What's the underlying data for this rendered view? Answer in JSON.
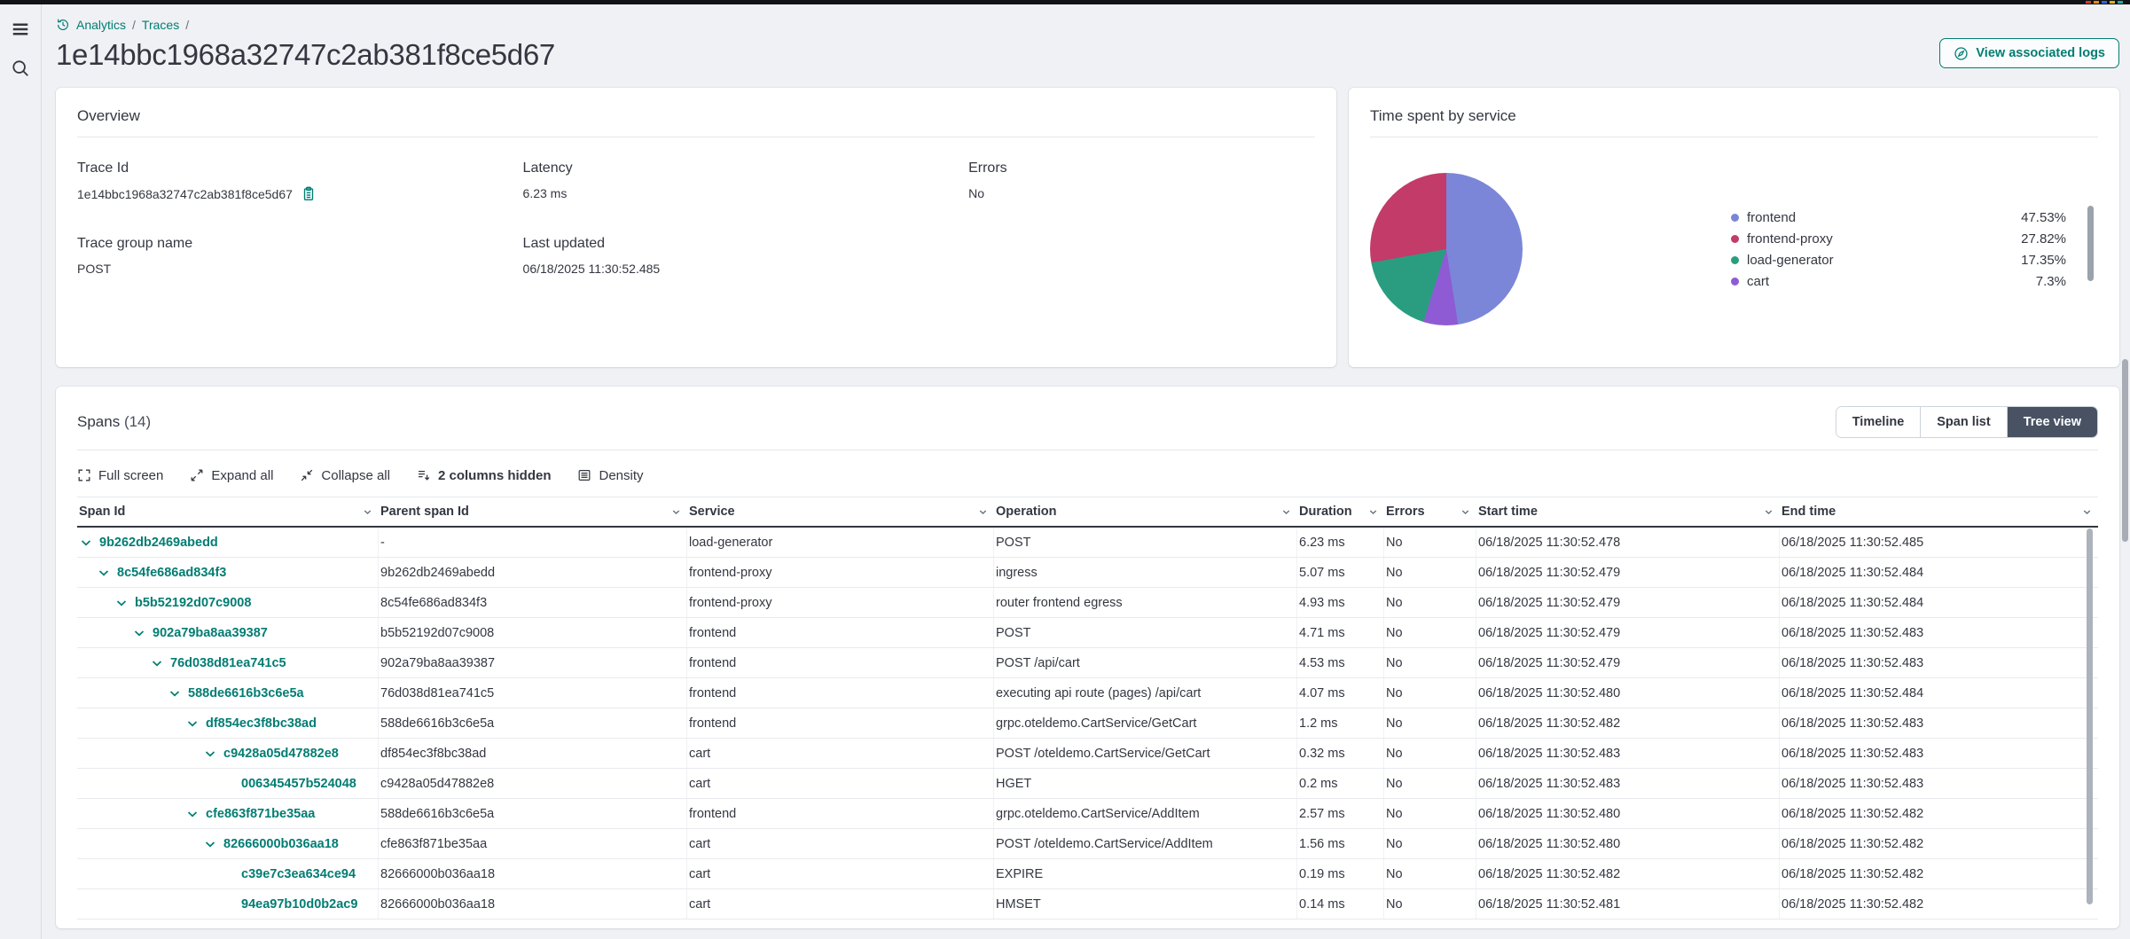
{
  "breadcrumb": {
    "items": [
      "Analytics",
      "Traces"
    ],
    "separator": "/"
  },
  "page_title": "1e14bbc1968a32747c2ab381f8ce5d67",
  "actions": {
    "view_logs": "View associated logs"
  },
  "overview": {
    "title": "Overview",
    "fields": [
      {
        "label": "Trace Id",
        "value": "1e14bbc1968a32747c2ab381f8ce5d67",
        "copyable": true
      },
      {
        "label": "Latency",
        "value": "6.23 ms",
        "copyable": false
      },
      {
        "label": "Errors",
        "value": "No",
        "copyable": false
      },
      {
        "label": "Trace group name",
        "value": "POST",
        "copyable": false
      },
      {
        "label": "Last updated",
        "value": "06/18/2025 11:30:52.485",
        "copyable": false
      }
    ]
  },
  "chart_data": {
    "type": "pie",
    "title": "Time spent by service",
    "categories": [
      "frontend",
      "frontend-proxy",
      "load-generator",
      "cart"
    ],
    "values": [
      47.53,
      27.82,
      17.35,
      7.3
    ],
    "value_labels": [
      "47.53%",
      "27.82%",
      "17.35%",
      "7.3%"
    ],
    "colors": [
      "#7B86D8",
      "#C23B69",
      "#2A9D80",
      "#8E5BD4"
    ],
    "legend_position": "right",
    "clockwise_order": [
      "frontend",
      "cart",
      "load-generator",
      "frontend-proxy"
    ]
  },
  "spans": {
    "title": "Spans",
    "count_label": "(14)",
    "tabs": [
      {
        "label": "Timeline",
        "active": false
      },
      {
        "label": "Span list",
        "active": false
      },
      {
        "label": "Tree view",
        "active": true
      }
    ],
    "toolbar": [
      {
        "icon": "fullscreen-icon",
        "label": "Full screen",
        "bold": false
      },
      {
        "icon": "expand-all-icon",
        "label": "Expand all",
        "bold": false
      },
      {
        "icon": "collapse-all-icon",
        "label": "Collapse all",
        "bold": false
      },
      {
        "icon": "columns-hidden-icon",
        "label": "2 columns hidden",
        "bold": true
      },
      {
        "icon": "density-icon",
        "label": "Density",
        "bold": false
      }
    ],
    "columns": [
      "Span Id",
      "Parent span Id",
      "Service",
      "Operation",
      "Duration",
      "Errors",
      "Start time",
      "End time"
    ],
    "rows": [
      {
        "level": 0,
        "expandable": true,
        "span_id": "9b262db2469abedd",
        "parent_span_id": "-",
        "service": "load-generator",
        "operation": "POST",
        "duration": "6.23 ms",
        "errors": "No",
        "start_time": "06/18/2025 11:30:52.478",
        "end_time": "06/18/2025 11:30:52.485"
      },
      {
        "level": 1,
        "expandable": true,
        "span_id": "8c54fe686ad834f3",
        "parent_span_id": "9b262db2469abedd",
        "service": "frontend-proxy",
        "operation": "ingress",
        "duration": "5.07 ms",
        "errors": "No",
        "start_time": "06/18/2025 11:30:52.479",
        "end_time": "06/18/2025 11:30:52.484"
      },
      {
        "level": 2,
        "expandable": true,
        "span_id": "b5b52192d07c9008",
        "parent_span_id": "8c54fe686ad834f3",
        "service": "frontend-proxy",
        "operation": "router frontend egress",
        "duration": "4.93 ms",
        "errors": "No",
        "start_time": "06/18/2025 11:30:52.479",
        "end_time": "06/18/2025 11:30:52.484"
      },
      {
        "level": 3,
        "expandable": true,
        "span_id": "902a79ba8aa39387",
        "parent_span_id": "b5b52192d07c9008",
        "service": "frontend",
        "operation": "POST",
        "duration": "4.71 ms",
        "errors": "No",
        "start_time": "06/18/2025 11:30:52.479",
        "end_time": "06/18/2025 11:30:52.483"
      },
      {
        "level": 4,
        "expandable": true,
        "span_id": "76d038d81ea741c5",
        "parent_span_id": "902a79ba8aa39387",
        "service": "frontend",
        "operation": "POST /api/cart",
        "duration": "4.53 ms",
        "errors": "No",
        "start_time": "06/18/2025 11:30:52.479",
        "end_time": "06/18/2025 11:30:52.483"
      },
      {
        "level": 5,
        "expandable": true,
        "span_id": "588de6616b3c6e5a",
        "parent_span_id": "76d038d81ea741c5",
        "service": "frontend",
        "operation": "executing api route (pages) /api/cart",
        "duration": "4.07 ms",
        "errors": "No",
        "start_time": "06/18/2025 11:30:52.480",
        "end_time": "06/18/2025 11:30:52.484"
      },
      {
        "level": 6,
        "expandable": true,
        "span_id": "df854ec3f8bc38ad",
        "parent_span_id": "588de6616b3c6e5a",
        "service": "frontend",
        "operation": "grpc.oteldemo.CartService/GetCart",
        "duration": "1.2 ms",
        "errors": "No",
        "start_time": "06/18/2025 11:30:52.482",
        "end_time": "06/18/2025 11:30:52.483"
      },
      {
        "level": 7,
        "expandable": true,
        "span_id": "c9428a05d47882e8",
        "parent_span_id": "df854ec3f8bc38ad",
        "service": "cart",
        "operation": "POST /oteldemo.CartService/GetCart",
        "duration": "0.32 ms",
        "errors": "No",
        "start_time": "06/18/2025 11:30:52.483",
        "end_time": "06/18/2025 11:30:52.483"
      },
      {
        "level": 8,
        "expandable": false,
        "span_id": "006345457b524048",
        "parent_span_id": "c9428a05d47882e8",
        "service": "cart",
        "operation": "HGET",
        "duration": "0.2 ms",
        "errors": "No",
        "start_time": "06/18/2025 11:30:52.483",
        "end_time": "06/18/2025 11:30:52.483"
      },
      {
        "level": 6,
        "expandable": true,
        "span_id": "cfe863f871be35aa",
        "parent_span_id": "588de6616b3c6e5a",
        "service": "frontend",
        "operation": "grpc.oteldemo.CartService/AddItem",
        "duration": "2.57 ms",
        "errors": "No",
        "start_time": "06/18/2025 11:30:52.480",
        "end_time": "06/18/2025 11:30:52.482"
      },
      {
        "level": 7,
        "expandable": true,
        "span_id": "82666000b036aa18",
        "parent_span_id": "cfe863f871be35aa",
        "service": "cart",
        "operation": "POST /oteldemo.CartService/AddItem",
        "duration": "1.56 ms",
        "errors": "No",
        "start_time": "06/18/2025 11:30:52.480",
        "end_time": "06/18/2025 11:30:52.482"
      },
      {
        "level": 8,
        "expandable": false,
        "span_id": "c39e7c3ea634ce94",
        "parent_span_id": "82666000b036aa18",
        "service": "cart",
        "operation": "EXPIRE",
        "duration": "0.19 ms",
        "errors": "No",
        "start_time": "06/18/2025 11:30:52.482",
        "end_time": "06/18/2025 11:30:52.482"
      },
      {
        "level": 8,
        "expandable": false,
        "span_id": "94ea97b10d0b2ac9",
        "parent_span_id": "82666000b036aa18",
        "service": "cart",
        "operation": "HMSET",
        "duration": "0.14 ms",
        "errors": "No",
        "start_time": "06/18/2025 11:30:52.481",
        "end_time": "06/18/2025 11:30:52.482"
      }
    ]
  }
}
